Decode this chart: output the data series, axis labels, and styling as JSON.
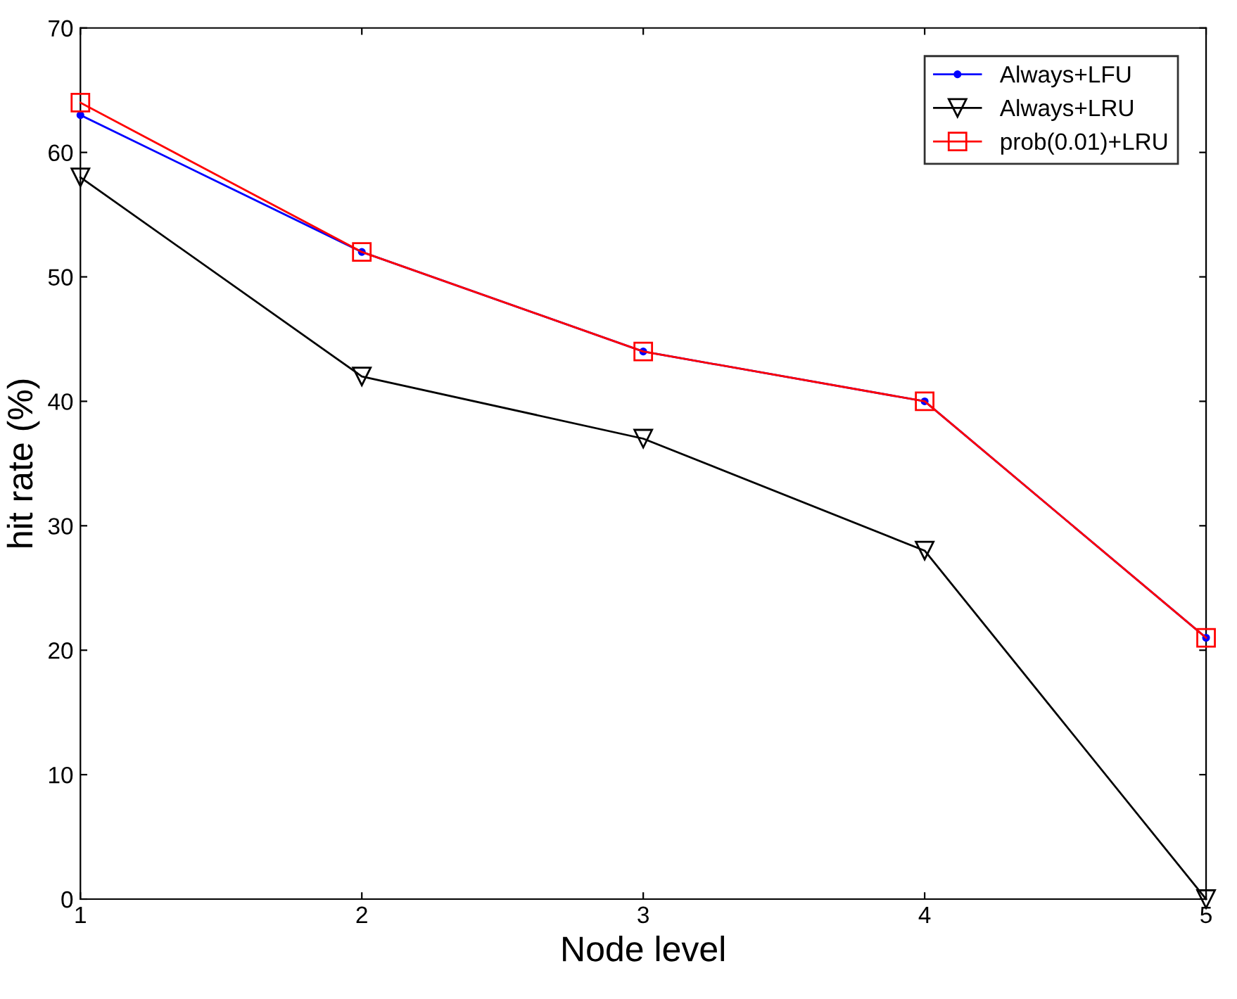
{
  "chart_data": {
    "type": "line",
    "xlabel": "Node level",
    "ylabel": "hit rate (%)",
    "x": [
      1,
      2,
      3,
      4,
      5
    ],
    "series": [
      {
        "name": "Always+LFU",
        "color": "#0000ff",
        "marker": "circle",
        "values": [
          63,
          52,
          44,
          40,
          21
        ]
      },
      {
        "name": "Always+LRU",
        "color": "#000000",
        "marker": "triangle",
        "values": [
          58,
          42,
          37,
          28,
          0
        ]
      },
      {
        "name": "prob(0.01)+LRU",
        "color": "#ff0000",
        "marker": "square",
        "values": [
          64,
          52,
          44,
          40,
          21
        ]
      }
    ],
    "xlim": [
      1,
      5
    ],
    "xticks": [
      1,
      2,
      3,
      4,
      5
    ],
    "ylim": [
      0,
      70
    ],
    "yticks": [
      0,
      10,
      20,
      30,
      40,
      50,
      60,
      70
    ],
    "grid": false,
    "legend": "top right",
    "line_style": "solid"
  }
}
